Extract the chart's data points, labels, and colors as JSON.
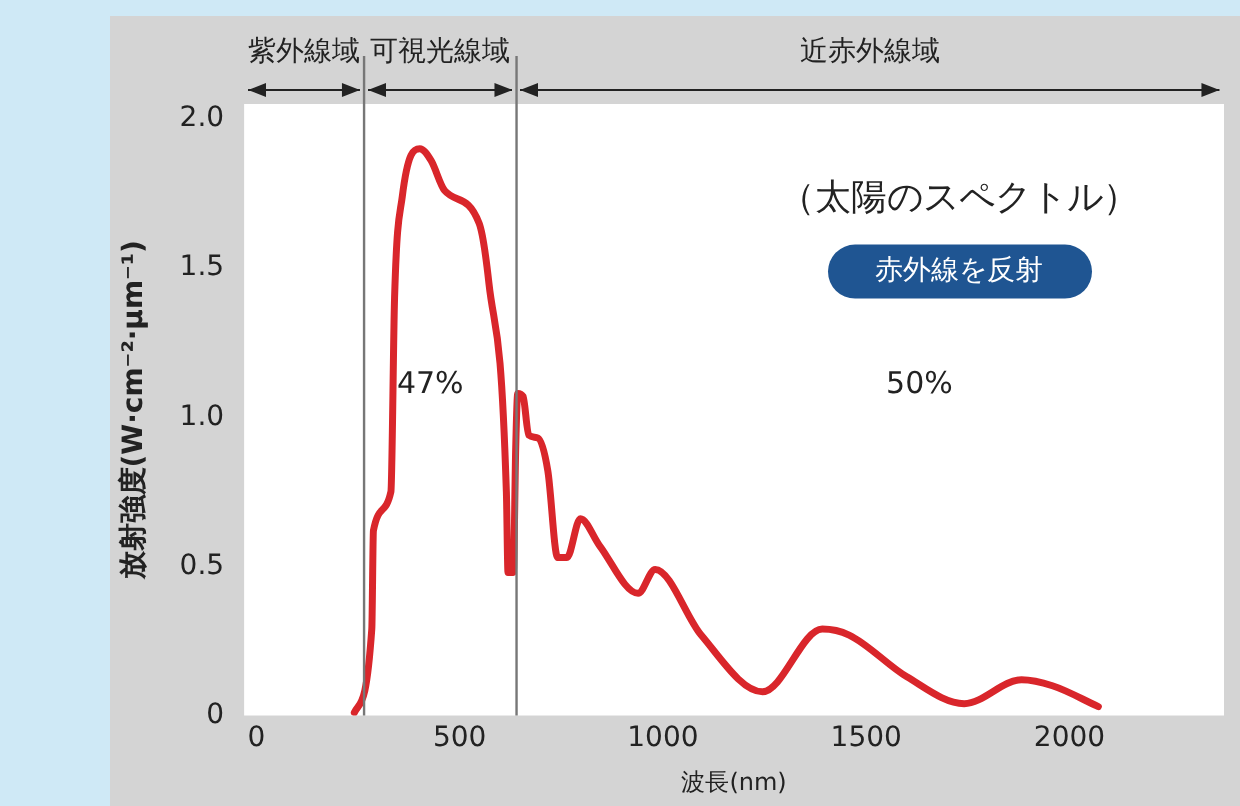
{
  "chart_data": {
    "type": "line",
    "title": "（太陽のスペクトル）",
    "xlabel": "波長(nm)",
    "ylabel": "放射強度(W·cm⁻²·μm⁻¹)",
    "series": [
      {
        "color": "#d9262b",
        "x": [
          241,
          284,
          288,
          331,
          340,
          359,
          402,
          430,
          463,
          548,
          572,
          615,
          619,
          632,
          638,
          643,
          656,
          670,
          693,
          717,
          741,
          764,
          797,
          844,
          939,
          981,
          1094,
          1245,
          1392,
          1458,
          1600,
          1741,
          1882,
          1958,
          2071
        ],
        "values": [
          0.01,
          0.29,
          0.62,
          0.75,
          1.4,
          1.74,
          1.9,
          1.86,
          1.76,
          1.65,
          1.45,
          0.75,
          0.48,
          0.48,
          0.9,
          1.08,
          1.07,
          0.94,
          0.93,
          0.82,
          0.53,
          0.53,
          0.66,
          0.57,
          0.41,
          0.49,
          0.27,
          0.08,
          0.29,
          0.27,
          0.13,
          0.04,
          0.12,
          0.1,
          0.03
        ]
      }
    ],
    "xlim": [
      -30,
      2380
    ],
    "ylim": [
      0,
      2.05
    ],
    "xticks": [
      0,
      500,
      1000,
      1500,
      2000
    ],
    "yticks": [
      0,
      {
        "value": 0.5,
        "label": "0.5"
      },
      {
        "value": 1,
        "label": "1.0"
      },
      {
        "value": 1.5,
        "label": "1.5"
      },
      {
        "value": 2,
        "label": "2.0"
      }
    ],
    "grid": false,
    "legend": false,
    "marker": "none",
    "line_style": "solid",
    "ref_lines": [
      {
        "axis": "x",
        "value": 265,
        "color": "#777777"
      },
      {
        "axis": "x",
        "value": 640,
        "color": "#777777"
      }
    ],
    "annotations": [
      "紫外線域",
      "可視光線域",
      "近赤外線域",
      "赤外線を反射",
      "47%",
      "50%"
    ]
  }
}
